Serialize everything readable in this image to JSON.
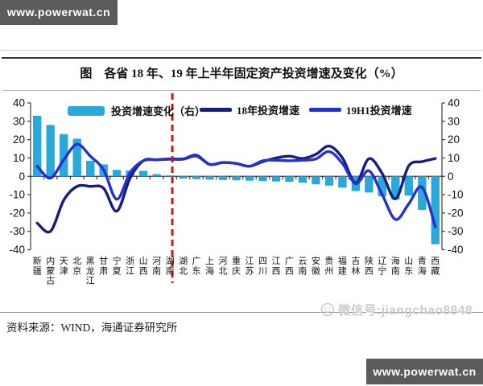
{
  "banner_top": {
    "text": "www.powerwat.cn"
  },
  "banner_bottom": {
    "text": "www.powerwat.cn"
  },
  "figure": {
    "title": "图　各省 18 年、19 年上半年固定资产投资增速及变化（%）",
    "source_label": "资料来源：",
    "source_text": "WIND，海通证券研究所"
  },
  "watermark": {
    "text": "微信号:jiangchao8848"
  },
  "chart_data": {
    "type": "bar+line",
    "title": "各省18年、19年上半年固定资产投资增速及变化（%）",
    "categories": [
      "新疆",
      "内蒙古",
      "天津",
      "北京",
      "黑龙江",
      "甘肃",
      "宁夏",
      "浙江",
      "山西",
      "河南",
      "湖南",
      "湖北",
      "广东",
      "上海",
      "河北",
      "重庆",
      "江苏",
      "四川",
      "江西",
      "广西",
      "云南",
      "安徽",
      "贵州",
      "福建",
      "吉林",
      "陕西",
      "辽宁",
      "海南",
      "山东",
      "青海",
      "西藏"
    ],
    "series": [
      {
        "name": "投资增速变化（右）",
        "type": "bar",
        "axis": "right",
        "color": "#29a8dc",
        "values": [
          33,
          28,
          23,
          20.5,
          8.5,
          6.5,
          3.5,
          3.2,
          3,
          1.2,
          0.5,
          -1.2,
          -1.5,
          -1.8,
          -2,
          -2.2,
          -2.4,
          -2.6,
          -2.8,
          -3,
          -3.5,
          -4.3,
          -5,
          -6.2,
          -8,
          -8.8,
          -10.9,
          -12.7,
          -10.5,
          -18.3,
          -37
        ]
      },
      {
        "name": "18年投资增速",
        "type": "line",
        "axis": "left",
        "color": "#161d7d",
        "values": [
          -25.5,
          -30,
          -13,
          -5.5,
          -5.5,
          -6.5,
          -19,
          -1,
          8.5,
          9,
          9.5,
          9.5,
          11.5,
          6.5,
          7.5,
          7,
          5.5,
          8,
          10,
          11,
          9.7,
          12,
          16.5,
          10,
          -3.5,
          9.6,
          1.5,
          -12.3,
          5.7,
          8,
          9.7
        ]
      },
      {
        "name": "19H1投资增速",
        "type": "line",
        "axis": "left",
        "color": "#2531cd",
        "values": [
          5.5,
          -1,
          9,
          17.5,
          11,
          3.5,
          -12.5,
          2,
          8.5,
          9,
          9.3,
          9.3,
          11,
          6.5,
          7.5,
          7,
          5.5,
          8.5,
          8.8,
          8.5,
          8.8,
          9.5,
          13.5,
          7,
          -4,
          3,
          -10,
          -23.5,
          -15,
          -6,
          -27.5
        ]
      }
    ],
    "left_axis": {
      "min": -40,
      "max": 40,
      "step": 10
    },
    "right_axis": {
      "min": -40,
      "max": 40,
      "step": 10
    },
    "grid": false,
    "legend_position": "top-inside",
    "divider_after_index": 10,
    "divider_color": "#d11414"
  }
}
